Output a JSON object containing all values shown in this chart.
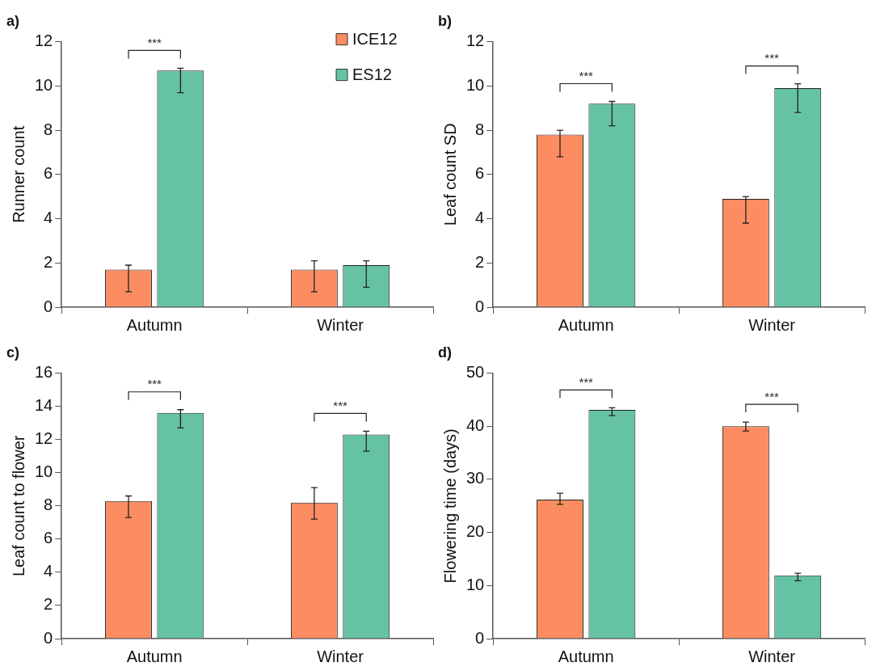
{
  "chart_data": [
    {
      "type": "bar",
      "title": "a)",
      "ylabel": "Runner count",
      "categories": [
        "Autumn",
        "Winter"
      ],
      "ylim": [
        0,
        12
      ],
      "yticks": [
        0,
        2,
        4,
        6,
        8,
        10,
        12
      ],
      "grid": false,
      "legend": "top right",
      "series": [
        {
          "name": "ICE12",
          "color": "#fc8d62",
          "values": [
            1.7,
            1.7
          ],
          "errors": [
            [
              0.7,
              1.9
            ],
            [
              0.7,
              2.1
            ]
          ]
        },
        {
          "name": "ES12",
          "color": "#66c2a5",
          "values": [
            10.7,
            1.9
          ],
          "errors": [
            [
              9.7,
              10.8
            ],
            [
              0.9,
              2.1
            ]
          ]
        }
      ],
      "annotations": [
        "***"
      ]
    },
    {
      "type": "bar",
      "title": "b)",
      "ylabel": "Leaf count SD",
      "categories": [
        "Autumn",
        "Winter"
      ],
      "ylim": [
        0,
        12
      ],
      "yticks": [
        0,
        2,
        4,
        6,
        8,
        10,
        12
      ],
      "grid": false,
      "series": [
        {
          "color": "#fc8d62",
          "values": [
            7.8,
            4.9
          ],
          "errors": [
            [
              6.8,
              8.0
            ],
            [
              3.8,
              5.0
            ]
          ]
        },
        {
          "color": "#66c2a5",
          "values": [
            9.2,
            9.9
          ],
          "errors": [
            [
              8.2,
              9.3
            ],
            [
              8.8,
              10.1
            ]
          ]
        }
      ],
      "annotations": [
        "***",
        "***"
      ]
    },
    {
      "type": "bar",
      "title": "c)",
      "ylabel": "Leaf count to flower",
      "categories": [
        "Autumn",
        "Winter"
      ],
      "ylim": [
        0,
        16
      ],
      "yticks": [
        0,
        2,
        4,
        6,
        8,
        10,
        12,
        14,
        16
      ],
      "grid": false,
      "series": [
        {
          "color": "#fc8d62",
          "values": [
            8.3,
            8.2
          ],
          "errors": [
            [
              7.3,
              8.6
            ],
            [
              7.2,
              9.1
            ]
          ]
        },
        {
          "color": "#66c2a5",
          "values": [
            13.6,
            12.3
          ],
          "errors": [
            [
              12.7,
              13.8
            ],
            [
              11.3,
              12.5
            ]
          ]
        }
      ],
      "annotations": [
        "***",
        "***"
      ]
    },
    {
      "type": "bar",
      "title": "d)",
      "ylabel": "Flowering time (days)",
      "categories": [
        "Autumn",
        "Winter"
      ],
      "ylim": [
        0,
        50
      ],
      "yticks": [
        0,
        10,
        20,
        30,
        40,
        50
      ],
      "grid": false,
      "series": [
        {
          "color": "#fc8d62",
          "values": [
            26.2,
            40.0
          ],
          "errors": [
            [
              25.3,
              27.4
            ],
            [
              39.1,
              40.8
            ]
          ]
        },
        {
          "color": "#66c2a5",
          "values": [
            43.1,
            11.9
          ],
          "errors": [
            [
              42.0,
              43.5
            ],
            [
              10.9,
              12.3
            ]
          ]
        }
      ],
      "annotations": [
        "***",
        "***"
      ]
    }
  ]
}
